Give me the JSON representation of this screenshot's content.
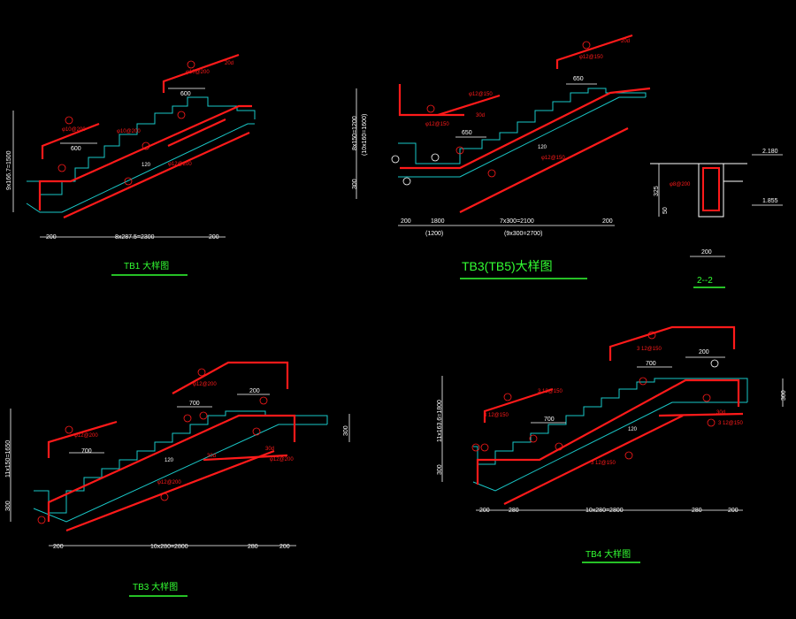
{
  "colors": {
    "background": "#000000",
    "concrete_outline": "#19c8c8",
    "rebar": "#ff1a1a",
    "dimension": "#ffffff",
    "title": "#33ff33"
  },
  "tb1": {
    "title": "TB1  大样图",
    "dim_bottom": [
      "200",
      "8x287.5=2300",
      "200"
    ],
    "dim_left": "9x166.7=1500",
    "dim_600a": "600",
    "dim_600b": "600",
    "marks": [
      "1",
      "2",
      "3",
      "4",
      "5",
      "6"
    ],
    "rebar_note_a": "φ10@200",
    "rebar_note_b": "φ10@200",
    "rebar_note_c": "φ10@200",
    "rebar_note_d": "φ12@200",
    "hook_20d": "20d",
    "dim_120": "120"
  },
  "tb3_tb5": {
    "title": "TB3(TB5)大样图",
    "dim_bottom": [
      "200",
      "1800",
      "7x300=2100",
      "200"
    ],
    "dim_bottom_sub": [
      "(1200)",
      "(9x300=2700)"
    ],
    "dim_left": "8x150=1200",
    "dim_left_sub": "(10x160=1600)",
    "dim_left_300": "300",
    "dim_650a": "650",
    "dim_650b": "650",
    "rebar_note_a": "φ12@150",
    "rebar_note_b": "φ12@150",
    "rebar_note_c": "φ12@150",
    "rebar_note_d": "φ12@150",
    "hook_20d": "20d",
    "hook_30d": "30d",
    "dim_120": "120"
  },
  "section_22": {
    "title": "2--2",
    "level_top": "2.180",
    "level_bottom": "1.855",
    "dim_325": "325",
    "dim_50": "50",
    "dim_200": "200",
    "rebar_note": "φ8@200"
  },
  "tb3": {
    "title": "TB3  大样图",
    "dim_bottom": [
      "200",
      "10x280=2800",
      "280",
      "200"
    ],
    "dim_left": "11x150=1650",
    "dim_left_300": "300",
    "dim_right_300": "300",
    "dim_700a": "700",
    "dim_700b": "700",
    "dim_200": "200",
    "rebar_note_a": "φ12@200",
    "rebar_note_b": "φ12@200",
    "rebar_note_c": "φ12@200",
    "rebar_note_d": "φ12@200",
    "hook_30d_a": "30d",
    "hook_30d_b": "30d",
    "dim_120": "120"
  },
  "tb4": {
    "title": "TB4  大样图",
    "dim_bottom": [
      "200",
      "280",
      "10x280=2800",
      "280",
      "200"
    ],
    "dim_left": "11x163.6=1800",
    "dim_left_300": "300",
    "dim_right_300": "300",
    "dim_700a": "700",
    "dim_700b": "700",
    "dim_200": "200",
    "rebar_note_a": "3 12@150",
    "rebar_note_b": "3 12@150",
    "rebar_note_c": "3 12@150",
    "rebar_note_d": "3 12@150",
    "rebar_note_e": "3 12@150",
    "hook_30d": "30d",
    "dim_120": "120"
  }
}
